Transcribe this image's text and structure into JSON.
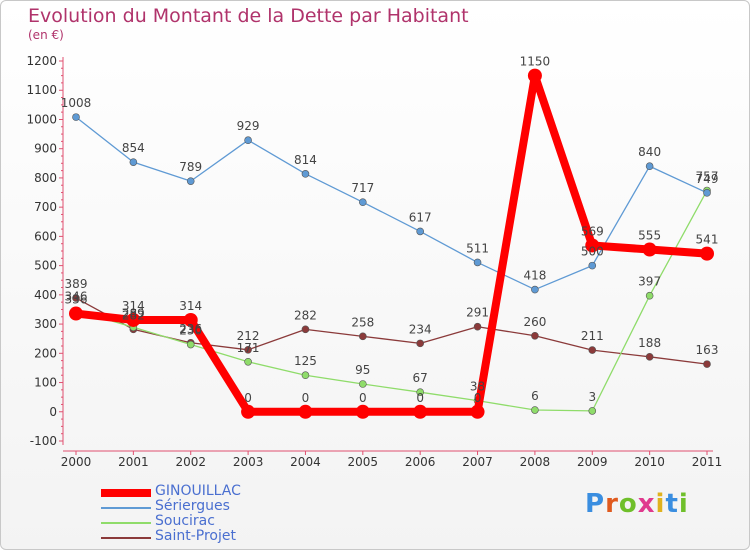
{
  "chart_data": {
    "type": "line",
    "title": "Evolution du Montant de la Dette par Habitant",
    "unit_label": "(en €)",
    "x": [
      "2000",
      "2001",
      "2002",
      "2003",
      "2004",
      "2005",
      "2006",
      "2007",
      "2008",
      "2009",
      "2010",
      "2011"
    ],
    "ylim": [
      -100,
      1200
    ],
    "yticks": [
      -100,
      0,
      100,
      200,
      300,
      400,
      500,
      600,
      700,
      800,
      900,
      1000,
      1100,
      1200
    ],
    "grid": false,
    "legend_position": "bottom-left",
    "series": [
      {
        "name": "GINOUILLAC",
        "color": "#ff0000",
        "values": [
          336,
          314,
          314,
          0,
          0,
          0,
          0,
          0,
          1150,
          569,
          555,
          541
        ]
      },
      {
        "name": "Sériergues",
        "color": "#5f9ad4",
        "values": [
          1008,
          854,
          789,
          929,
          814,
          717,
          617,
          511,
          418,
          500,
          840,
          749
        ]
      },
      {
        "name": "Soucirac",
        "color": "#8fdc6a",
        "values": [
          346,
          289,
          230,
          171,
          125,
          95,
          67,
          38,
          6,
          3,
          397,
          757
        ]
      },
      {
        "name": "Saint-Projet",
        "color": "#8b3a3a",
        "values": [
          389,
          282,
          236,
          212,
          282,
          258,
          234,
          291,
          260,
          211,
          188,
          163
        ]
      }
    ]
  },
  "logo": {
    "text": "Proxiti",
    "letter_colors": [
      "#3a8ee0",
      "#e05a1e",
      "#6fbf2a",
      "#e03a8e",
      "#e0b21e",
      "#3a8ee0",
      "#6fbf2a"
    ]
  }
}
